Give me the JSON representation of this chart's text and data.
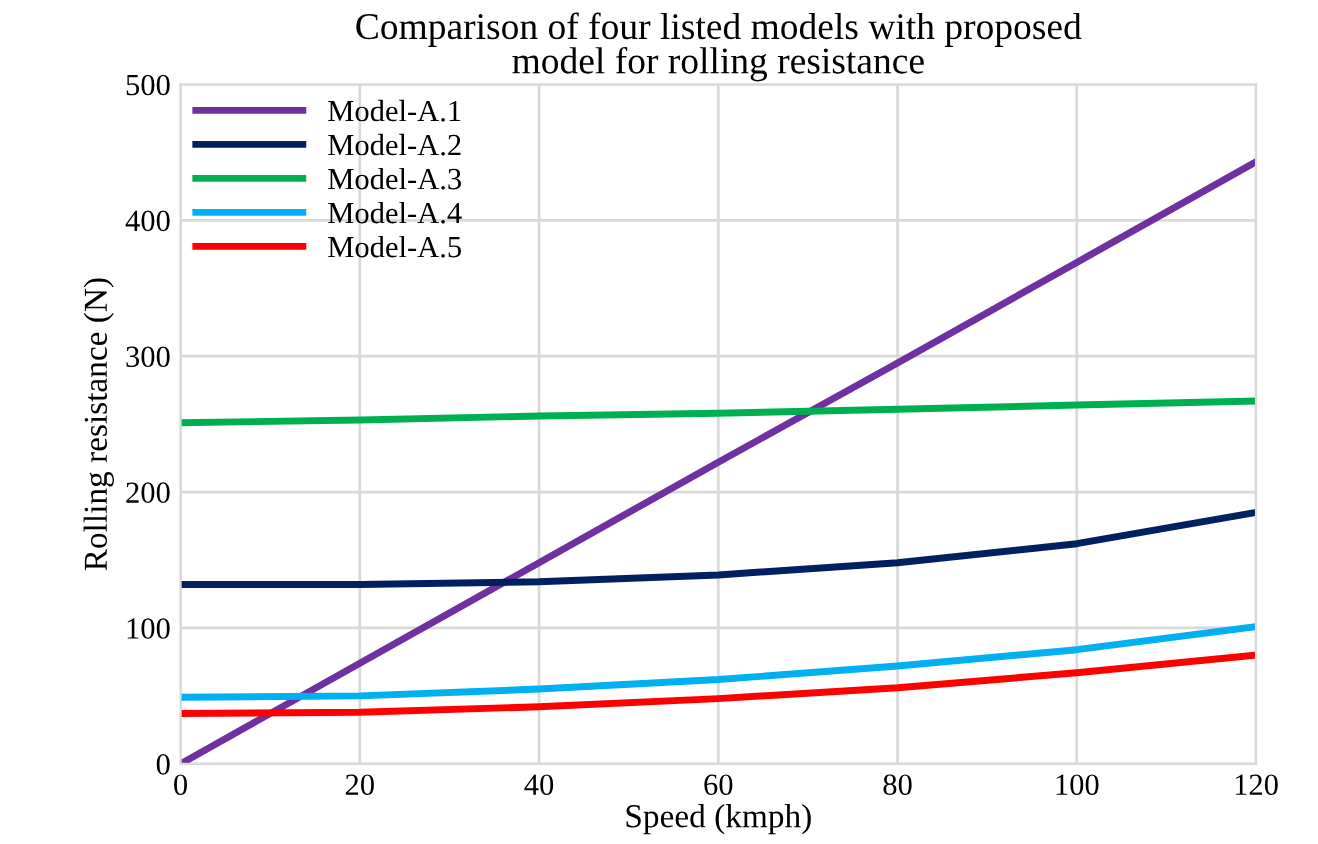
{
  "chart_data": {
    "type": "line",
    "title": "Comparison of four listed models with proposed\nmodel for rolling resistance",
    "xlabel": "Speed (kmph)",
    "ylabel": "Rolling resistance (N)",
    "x": [
      0,
      20,
      40,
      60,
      80,
      100,
      120
    ],
    "series": [
      {
        "name": "Model-A.1",
        "color": "#7030a0",
        "values": [
          0,
          74,
          148,
          222,
          295,
          369,
          443
        ]
      },
      {
        "name": "Model-A.2",
        "color": "#002060",
        "values": [
          132,
          132,
          134,
          139,
          148,
          162,
          185
        ]
      },
      {
        "name": "Model-A.3",
        "color": "#00b050",
        "values": [
          251,
          253,
          256,
          258,
          261,
          264,
          267
        ]
      },
      {
        "name": "Model-A.4",
        "color": "#00b0f0",
        "values": [
          49,
          50,
          55,
          62,
          72,
          84,
          101
        ]
      },
      {
        "name": "Model-A.5",
        "color": "#ff0000",
        "values": [
          37,
          38,
          42,
          48,
          56,
          67,
          80
        ]
      }
    ],
    "xlim": [
      0,
      120
    ],
    "ylim": [
      0,
      500
    ],
    "xticks": [
      0,
      20,
      40,
      60,
      80,
      100,
      120
    ],
    "yticks": [
      0,
      100,
      200,
      300,
      400,
      500
    ],
    "grid": true,
    "legend": "top left",
    "marker": "none",
    "line_style": "solid"
  }
}
